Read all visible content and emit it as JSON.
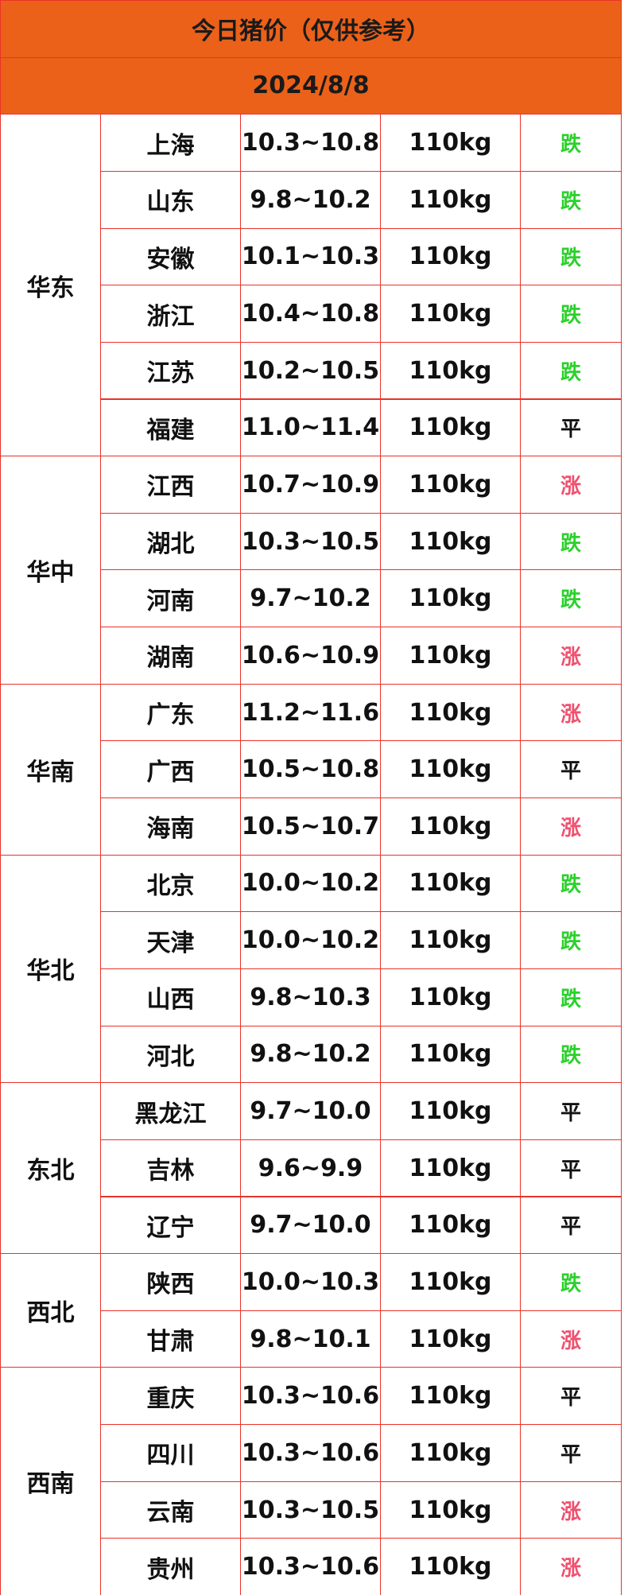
{
  "header": {
    "title": "今日猪价（仅供参考）",
    "date": "2024/8/8"
  },
  "trend_colors": {
    "跌": "#2bd12b",
    "涨": "#f0506e",
    "平": "#111111"
  },
  "regions": [
    {
      "name": "华东",
      "rows": [
        [
          "上海",
          "10.3~10.8",
          "110kg",
          "跌"
        ],
        [
          "山东",
          "9.8~10.2",
          "110kg",
          "跌"
        ],
        [
          "安徽",
          "10.1~10.3",
          "110kg",
          "跌"
        ],
        [
          "浙江",
          "10.4~10.8",
          "110kg",
          "跌"
        ],
        [
          "江苏",
          "10.2~10.5",
          "110kg",
          "跌"
        ],
        [
          "福建",
          "11.0~11.4",
          "110kg",
          "平"
        ]
      ]
    },
    {
      "name": "华中",
      "rows": [
        [
          "江西",
          "10.7~10.9",
          "110kg",
          "涨"
        ],
        [
          "湖北",
          "10.3~10.5",
          "110kg",
          "跌"
        ],
        [
          "河南",
          "9.7~10.2",
          "110kg",
          "跌"
        ],
        [
          "湖南",
          "10.6~10.9",
          "110kg",
          "涨"
        ]
      ]
    },
    {
      "name": "华南",
      "rows": [
        [
          "广东",
          "11.2~11.6",
          "110kg",
          "涨"
        ],
        [
          "广西",
          "10.5~10.8",
          "110kg",
          "平"
        ],
        [
          "海南",
          "10.5~10.7",
          "110kg",
          "涨"
        ]
      ]
    },
    {
      "name": "华北",
      "rows": [
        [
          "北京",
          "10.0~10.2",
          "110kg",
          "跌"
        ],
        [
          "天津",
          "10.0~10.2",
          "110kg",
          "跌"
        ],
        [
          "山西",
          "9.8~10.3",
          "110kg",
          "跌"
        ],
        [
          "河北",
          "9.8~10.2",
          "110kg",
          "跌"
        ]
      ]
    },
    {
      "name": "东北",
      "rows": [
        [
          "黑龙江",
          "9.7~10.0",
          "110kg",
          "平"
        ],
        [
          "吉林",
          "9.6~9.9",
          "110kg",
          "平"
        ],
        [
          "辽宁",
          "9.7~10.0",
          "110kg",
          "平"
        ]
      ]
    },
    {
      "name": "西北",
      "rows": [
        [
          "陕西",
          "10.0~10.3",
          "110kg",
          "跌"
        ],
        [
          "甘肃",
          "9.8~10.1",
          "110kg",
          "涨"
        ]
      ]
    },
    {
      "name": "西南",
      "rows": [
        [
          "重庆",
          "10.3~10.6",
          "110kg",
          "平"
        ],
        [
          "四川",
          "10.3~10.6",
          "110kg",
          "平"
        ],
        [
          "云南",
          "10.3~10.5",
          "110kg",
          "涨"
        ],
        [
          "贵州",
          "10.3~10.6",
          "110kg",
          "涨"
        ]
      ]
    }
  ]
}
